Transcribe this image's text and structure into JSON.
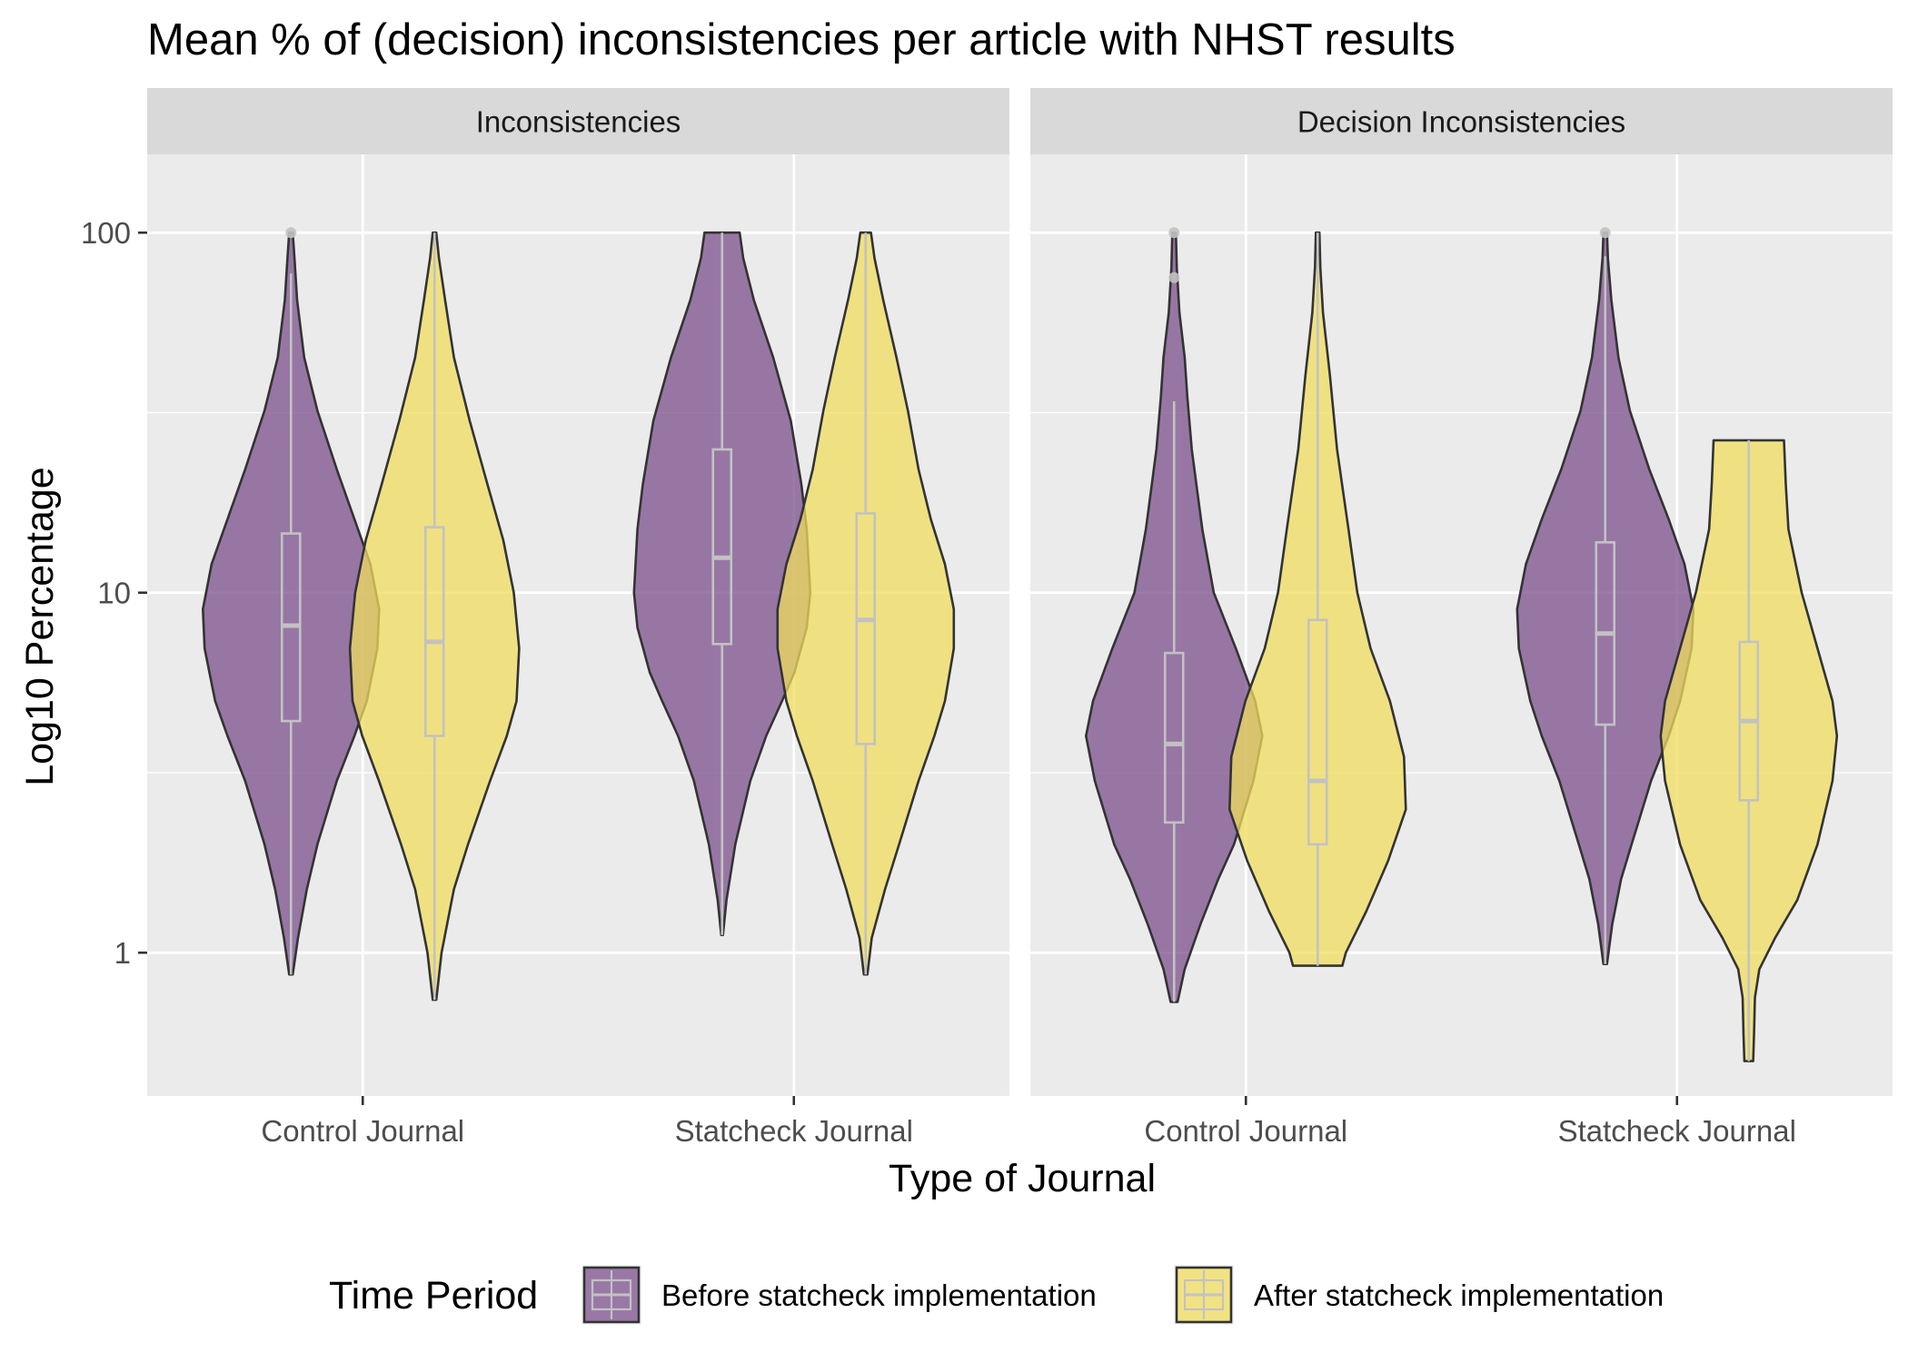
{
  "chart_data": {
    "type": "violin",
    "title": "Mean % of (decision) inconsistencies per article with NHST results",
    "xlabel": "Type of Journal",
    "ylabel": "Log10 Percentage",
    "yscale": "log10",
    "ylim": [
      0.4,
      165
    ],
    "yticks": [
      1,
      10,
      100
    ],
    "ytick_labels": [
      "1",
      "10",
      "100"
    ],
    "categories": [
      "Control Journal",
      "Statcheck Journal"
    ],
    "grid": true,
    "legend": {
      "title": "Time Period",
      "position": "bottom",
      "entries": [
        {
          "name": "Before statcheck implementation",
          "color": "#7b4f8c"
        },
        {
          "name": "After statcheck implementation",
          "color": "#f0de5e"
        }
      ]
    },
    "box_color": "#c2c2c2",
    "panels": [
      {
        "label": "Inconsistencies",
        "groups": [
          {
            "category": "Control Journal",
            "series": "Before statcheck implementation",
            "min": 0.87,
            "q1": 4.4,
            "median": 8.1,
            "q3": 14.6,
            "max": 100,
            "whisker_high": 77,
            "outliers": [
              100
            ],
            "density": [
              [
                0.87,
                0.02
              ],
              [
                1.1,
                0.08
              ],
              [
                1.5,
                0.18
              ],
              [
                2,
                0.3
              ],
              [
                3,
                0.52
              ],
              [
                4,
                0.72
              ],
              [
                5,
                0.86
              ],
              [
                7,
                0.98
              ],
              [
                9,
                1.0
              ],
              [
                12,
                0.9
              ],
              [
                16,
                0.72
              ],
              [
                22,
                0.52
              ],
              [
                32,
                0.3
              ],
              [
                45,
                0.15
              ],
              [
                65,
                0.07
              ],
              [
                85,
                0.04
              ],
              [
                100,
                0.02
              ]
            ]
          },
          {
            "category": "Control Journal",
            "series": "After statcheck implementation",
            "min": 0.74,
            "q1": 4.0,
            "median": 7.3,
            "q3": 15.2,
            "max": 100,
            "whisker_high": 100,
            "outliers": [],
            "density": [
              [
                0.74,
                0.02
              ],
              [
                1,
                0.08
              ],
              [
                1.5,
                0.22
              ],
              [
                2,
                0.38
              ],
              [
                3,
                0.63
              ],
              [
                4,
                0.82
              ],
              [
                5,
                0.93
              ],
              [
                7,
                0.96
              ],
              [
                10,
                0.9
              ],
              [
                14,
                0.78
              ],
              [
                20,
                0.6
              ],
              [
                30,
                0.4
              ],
              [
                45,
                0.22
              ],
              [
                65,
                0.12
              ],
              [
                85,
                0.05
              ],
              [
                100,
                0.02
              ]
            ]
          },
          {
            "category": "Statcheck Journal",
            "series": "Before statcheck implementation",
            "min": 1.12,
            "q1": 7.2,
            "median": 12.5,
            "q3": 25.0,
            "max": 100,
            "whisker_high": 100,
            "outliers": [],
            "density": [
              [
                1.12,
                0.01
              ],
              [
                1.4,
                0.05
              ],
              [
                2,
                0.15
              ],
              [
                3,
                0.32
              ],
              [
                4,
                0.5
              ],
              [
                5,
                0.68
              ],
              [
                6,
                0.82
              ],
              [
                8,
                0.96
              ],
              [
                10,
                1.0
              ],
              [
                15,
                0.96
              ],
              [
                20,
                0.9
              ],
              [
                30,
                0.78
              ],
              [
                45,
                0.58
              ],
              [
                65,
                0.36
              ],
              [
                85,
                0.24
              ],
              [
                100,
                0.2
              ]
            ]
          },
          {
            "category": "Statcheck Journal",
            "series": "After statcheck implementation",
            "min": 0.87,
            "q1": 3.8,
            "median": 8.4,
            "q3": 16.6,
            "max": 100,
            "whisker_high": 100,
            "outliers": [],
            "density": [
              [
                0.87,
                0.02
              ],
              [
                1.1,
                0.07
              ],
              [
                1.5,
                0.22
              ],
              [
                2,
                0.38
              ],
              [
                3,
                0.6
              ],
              [
                4,
                0.78
              ],
              [
                5,
                0.9
              ],
              [
                7,
                1.0
              ],
              [
                9,
                1.0
              ],
              [
                12,
                0.9
              ],
              [
                16,
                0.74
              ],
              [
                22,
                0.6
              ],
              [
                32,
                0.48
              ],
              [
                45,
                0.35
              ],
              [
                65,
                0.2
              ],
              [
                85,
                0.1
              ],
              [
                100,
                0.06
              ]
            ]
          }
        ]
      },
      {
        "label": "Decision Inconsistencies",
        "groups": [
          {
            "category": "Control Journal",
            "series": "Before statcheck implementation",
            "min": 0.73,
            "q1": 2.3,
            "median": 3.8,
            "q3": 6.8,
            "max": 100,
            "whisker_high": 34,
            "outliers": [
              75,
              100
            ],
            "density": [
              [
                0.73,
                0.04
              ],
              [
                0.9,
                0.12
              ],
              [
                1.2,
                0.3
              ],
              [
                1.6,
                0.5
              ],
              [
                2,
                0.68
              ],
              [
                3,
                0.9
              ],
              [
                4,
                1.0
              ],
              [
                5,
                0.92
              ],
              [
                7,
                0.7
              ],
              [
                10,
                0.45
              ],
              [
                15,
                0.32
              ],
              [
                25,
                0.2
              ],
              [
                35,
                0.15
              ],
              [
                45,
                0.12
              ],
              [
                60,
                0.06
              ],
              [
                80,
                0.03
              ],
              [
                100,
                0.02
              ]
            ]
          },
          {
            "category": "Control Journal",
            "series": "After statcheck implementation",
            "min": 0.92,
            "q1": 2.0,
            "median": 3.0,
            "q3": 8.4,
            "max": 100,
            "whisker_high": 100,
            "outliers": [],
            "density": [
              [
                0.92,
                0.28
              ],
              [
                1,
                0.32
              ],
              [
                1.3,
                0.55
              ],
              [
                1.8,
                0.8
              ],
              [
                2.5,
                1.0
              ],
              [
                3.5,
                0.98
              ],
              [
                5,
                0.82
              ],
              [
                7,
                0.6
              ],
              [
                10,
                0.45
              ],
              [
                15,
                0.35
              ],
              [
                25,
                0.22
              ],
              [
                40,
                0.14
              ],
              [
                60,
                0.06
              ],
              [
                80,
                0.03
              ],
              [
                100,
                0.02
              ]
            ]
          },
          {
            "category": "Statcheck Journal",
            "series": "Before statcheck implementation",
            "min": 0.93,
            "q1": 4.3,
            "median": 7.7,
            "q3": 13.8,
            "max": 100,
            "whisker_high": 86,
            "outliers": [
              100
            ],
            "density": [
              [
                0.93,
                0.02
              ],
              [
                1.2,
                0.08
              ],
              [
                1.6,
                0.18
              ],
              [
                2,
                0.3
              ],
              [
                3,
                0.52
              ],
              [
                4,
                0.72
              ],
              [
                5,
                0.85
              ],
              [
                7,
                0.98
              ],
              [
                9,
                1.0
              ],
              [
                12,
                0.9
              ],
              [
                16,
                0.72
              ],
              [
                22,
                0.5
              ],
              [
                32,
                0.28
              ],
              [
                45,
                0.15
              ],
              [
                65,
                0.07
              ],
              [
                85,
                0.03
              ],
              [
                100,
                0.02
              ]
            ]
          },
          {
            "category": "Statcheck Journal",
            "series": "After statcheck implementation",
            "min": 0.5,
            "q1": 2.65,
            "median": 4.4,
            "q3": 7.3,
            "max": 26.5,
            "whisker_high": 26.5,
            "outliers": [],
            "density": [
              [
                0.5,
                0.05
              ],
              [
                0.6,
                0.06
              ],
              [
                0.75,
                0.07
              ],
              [
                0.9,
                0.12
              ],
              [
                1.1,
                0.3
              ],
              [
                1.4,
                0.55
              ],
              [
                2,
                0.78
              ],
              [
                3,
                0.95
              ],
              [
                4,
                1.0
              ],
              [
                5,
                0.95
              ],
              [
                7,
                0.78
              ],
              [
                10,
                0.6
              ],
              [
                15,
                0.45
              ],
              [
                20,
                0.42
              ],
              [
                26.5,
                0.4
              ]
            ]
          }
        ]
      }
    ]
  }
}
